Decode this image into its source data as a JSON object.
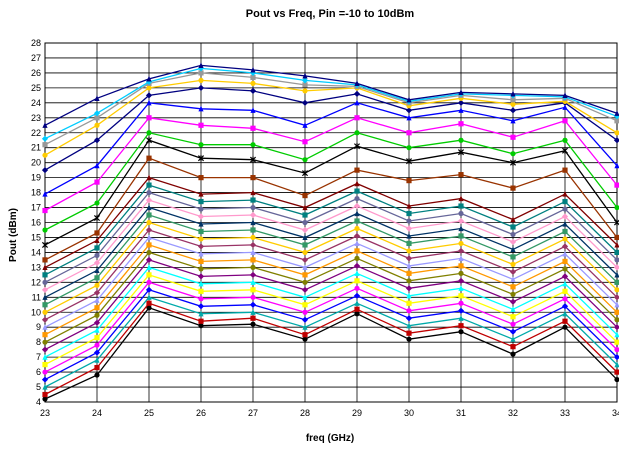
{
  "chart_data": {
    "type": "line",
    "title": "Pout vs Freq, Pin =-10 to 10dBm",
    "xlabel": "freq (GHz)",
    "ylabel": "Pout (dBm)",
    "x": [
      23,
      24,
      25,
      26,
      27,
      28,
      29,
      30,
      31,
      32,
      33,
      34
    ],
    "x_tick_labels": [
      "23",
      "24",
      "25",
      "26",
      "27",
      "28",
      "29",
      "30",
      "31",
      "32",
      "33",
      "34"
    ],
    "xlim": [
      23,
      34
    ],
    "ylim": [
      4,
      28
    ],
    "y_ticks": [
      4,
      5,
      6,
      7,
      8,
      9,
      10,
      11,
      12,
      13,
      14,
      15,
      16,
      17,
      18,
      19,
      20,
      21,
      22,
      23,
      24,
      25,
      26,
      27,
      28
    ],
    "grid": true,
    "legend": "none",
    "series": [
      {
        "color": "#000000",
        "marker": "circle",
        "values": [
          4.2,
          5.8,
          10.3,
          9.1,
          9.2,
          8.2,
          9.9,
          8.2,
          8.7,
          7.2,
          9.0,
          5.5
        ]
      },
      {
        "color": "#c00000",
        "marker": "square",
        "values": [
          4.5,
          6.3,
          10.6,
          9.4,
          9.6,
          8.5,
          10.2,
          8.6,
          9.1,
          7.7,
          9.4,
          6.0
        ]
      },
      {
        "color": "#00aaaa",
        "marker": "triangle",
        "values": [
          5.0,
          6.8,
          11.0,
          9.9,
          10.0,
          9.0,
          10.6,
          9.1,
          9.6,
          8.2,
          9.9,
          6.5
        ]
      },
      {
        "color": "#0000ff",
        "marker": "diamond",
        "values": [
          5.5,
          7.3,
          11.5,
          10.4,
          10.5,
          9.5,
          11.1,
          9.6,
          10.1,
          8.7,
          10.4,
          7.0
        ]
      },
      {
        "color": "#ff00ff",
        "marker": "circle",
        "values": [
          6.0,
          7.8,
          12.0,
          10.9,
          11.0,
          10.0,
          11.6,
          10.1,
          10.6,
          9.2,
          10.9,
          7.5
        ]
      },
      {
        "color": "#ffff00",
        "marker": "square",
        "values": [
          6.5,
          8.3,
          12.5,
          11.4,
          11.5,
          10.5,
          12.1,
          10.6,
          11.1,
          9.7,
          11.4,
          8.0
        ]
      },
      {
        "color": "#00ffff",
        "marker": "triangle",
        "values": [
          7.0,
          8.8,
          13.0,
          11.9,
          12.0,
          11.0,
          12.6,
          11.1,
          11.6,
          10.2,
          11.9,
          8.5
        ]
      },
      {
        "color": "#800080",
        "marker": "diamond",
        "values": [
          7.5,
          9.3,
          13.5,
          12.4,
          12.5,
          11.5,
          13.1,
          11.6,
          12.1,
          10.7,
          12.4,
          9.0
        ]
      },
      {
        "color": "#808000",
        "marker": "circle",
        "values": [
          8.0,
          9.8,
          14.0,
          12.9,
          13.0,
          12.0,
          13.6,
          12.1,
          12.6,
          11.2,
          12.9,
          9.5
        ]
      },
      {
        "color": "#ff9900",
        "marker": "square",
        "values": [
          8.5,
          10.3,
          14.5,
          13.4,
          13.5,
          12.5,
          14.1,
          12.6,
          13.1,
          11.7,
          13.4,
          10.0
        ]
      },
      {
        "color": "#9999ff",
        "marker": "triangle",
        "values": [
          9.0,
          10.8,
          15.0,
          13.9,
          14.0,
          13.0,
          14.6,
          13.1,
          13.6,
          12.2,
          13.9,
          10.5
        ]
      },
      {
        "color": "#993366",
        "marker": "diamond",
        "values": [
          9.5,
          11.3,
          15.5,
          14.4,
          14.5,
          13.5,
          15.1,
          13.6,
          14.1,
          12.7,
          14.4,
          11.0
        ]
      },
      {
        "color": "#ffcc00",
        "marker": "circle",
        "values": [
          10.0,
          11.8,
          16.0,
          14.9,
          15.0,
          14.0,
          15.6,
          14.1,
          14.6,
          13.2,
          14.9,
          11.5
        ]
      },
      {
        "color": "#339966",
        "marker": "square",
        "values": [
          10.5,
          12.3,
          16.5,
          15.4,
          15.5,
          14.5,
          16.1,
          14.6,
          15.1,
          13.7,
          15.4,
          12.0
        ]
      },
      {
        "color": "#003366",
        "marker": "triangle",
        "values": [
          11.0,
          12.8,
          17.0,
          15.9,
          16.0,
          15.0,
          16.6,
          15.1,
          15.6,
          14.2,
          15.9,
          12.5
        ]
      },
      {
        "color": "#ff99cc",
        "marker": "diamond",
        "values": [
          11.5,
          13.3,
          17.5,
          16.4,
          16.5,
          15.5,
          17.1,
          15.6,
          16.1,
          14.7,
          16.4,
          13.0
        ]
      },
      {
        "color": "#666699",
        "marker": "circle",
        "values": [
          12.0,
          13.8,
          18.0,
          16.9,
          17.0,
          16.0,
          17.6,
          16.1,
          16.6,
          15.2,
          16.9,
          13.5
        ]
      },
      {
        "color": "#008080",
        "marker": "square",
        "values": [
          12.5,
          14.3,
          18.5,
          17.4,
          17.5,
          16.5,
          18.1,
          16.6,
          17.1,
          15.7,
          17.4,
          14.0
        ]
      },
      {
        "color": "#800000",
        "marker": "triangle",
        "values": [
          13.0,
          14.8,
          19.0,
          17.9,
          18.0,
          17.0,
          18.6,
          17.1,
          17.6,
          16.2,
          17.9,
          14.5
        ]
      },
      {
        "color": "#993300",
        "marker": "square",
        "values": [
          13.5,
          15.3,
          20.3,
          19.0,
          19.0,
          17.8,
          19.5,
          18.8,
          19.2,
          18.3,
          19.5,
          15.0
        ]
      },
      {
        "color": "#000000",
        "marker": "star",
        "values": [
          14.5,
          16.3,
          21.5,
          20.3,
          20.2,
          19.3,
          21.1,
          20.1,
          20.7,
          20.0,
          20.8,
          16.0
        ]
      },
      {
        "color": "#00cc00",
        "marker": "circle",
        "values": [
          15.5,
          17.3,
          22.0,
          21.2,
          21.2,
          20.2,
          22.0,
          21.0,
          21.5,
          20.6,
          21.5,
          17.0
        ]
      },
      {
        "color": "#ff00ff",
        "marker": "square",
        "values": [
          16.8,
          18.7,
          23.0,
          22.5,
          22.3,
          21.4,
          23.0,
          22.0,
          22.6,
          21.7,
          22.8,
          18.5
        ]
      },
      {
        "color": "#0000ff",
        "marker": "triangle",
        "values": [
          17.9,
          19.8,
          24.0,
          23.6,
          23.5,
          22.5,
          24.0,
          23.0,
          23.5,
          22.8,
          23.7,
          19.8
        ]
      },
      {
        "color": "#000080",
        "marker": "diamond",
        "values": [
          19.5,
          21.5,
          24.5,
          25.0,
          24.8,
          24.0,
          24.6,
          23.5,
          24.0,
          23.5,
          24.0,
          21.5
        ]
      },
      {
        "color": "#ffcc00",
        "marker": "circle",
        "values": [
          20.5,
          22.5,
          25.0,
          25.5,
          25.3,
          24.8,
          25.0,
          23.8,
          24.3,
          23.9,
          24.1,
          22.0
        ]
      },
      {
        "color": "#999999",
        "marker": "square",
        "values": [
          21.2,
          23.0,
          25.3,
          26.0,
          25.7,
          25.2,
          25.1,
          24.0,
          24.5,
          24.2,
          24.3,
          22.8
        ]
      },
      {
        "color": "#00ccff",
        "marker": "diamond",
        "values": [
          21.6,
          23.3,
          25.4,
          26.3,
          26.0,
          25.5,
          25.2,
          24.1,
          24.6,
          24.5,
          24.4,
          23.1
        ]
      },
      {
        "color": "#000080",
        "marker": "triangle",
        "values": [
          22.5,
          24.3,
          25.6,
          26.5,
          26.2,
          25.8,
          25.3,
          24.2,
          24.7,
          24.6,
          24.5,
          23.3
        ]
      }
    ]
  }
}
